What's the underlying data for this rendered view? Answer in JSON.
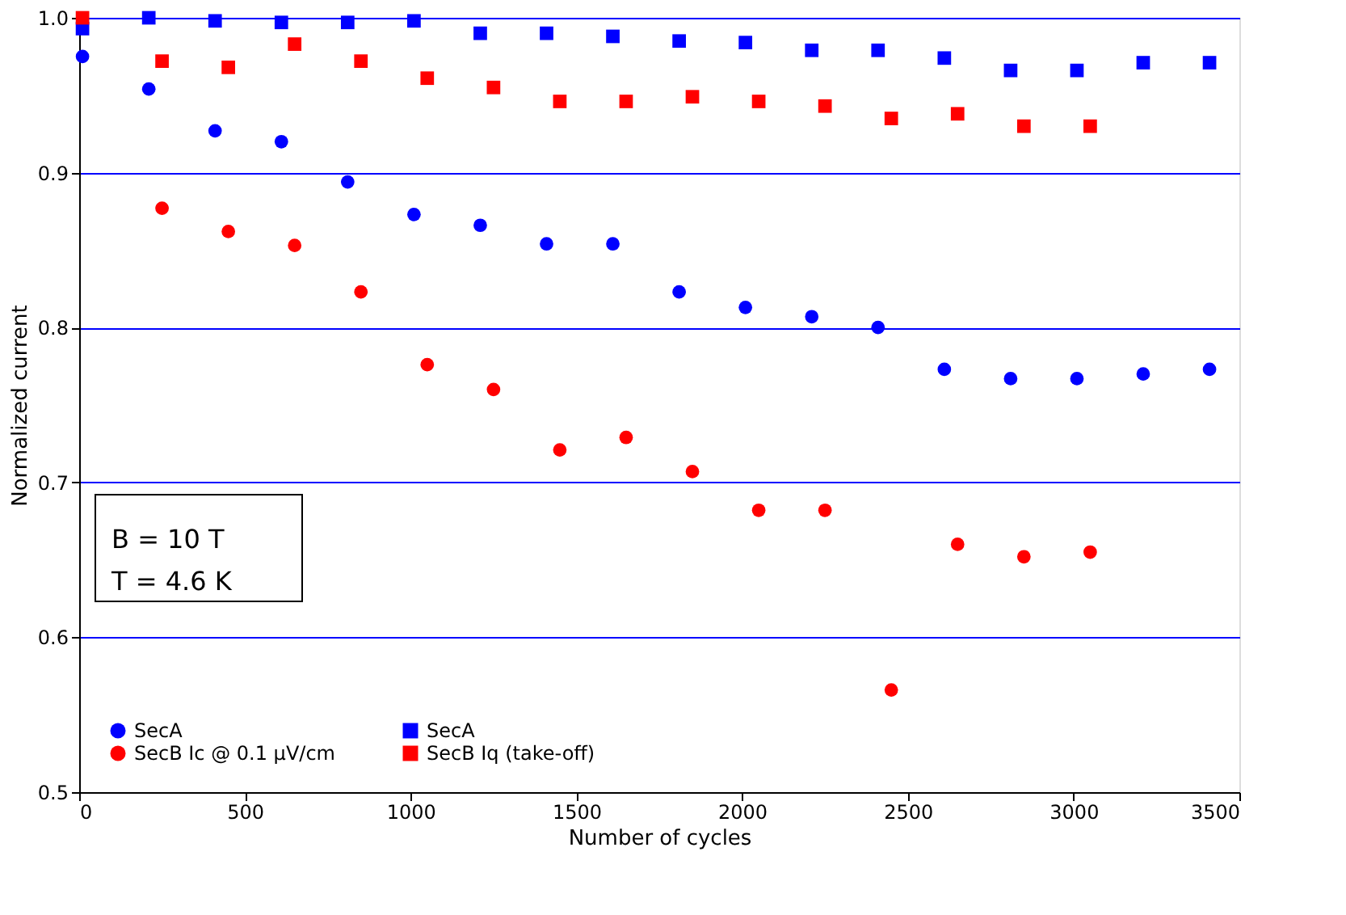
{
  "chart_data": {
    "type": "scatter",
    "xlabel": "Number of cycles",
    "ylabel": "Normalized current",
    "xlim": [
      0,
      3500
    ],
    "xticks": [
      0,
      500,
      1000,
      1500,
      2000,
      2500,
      3000,
      3500
    ],
    "ylim": [
      0.5,
      1.0
    ],
    "yticks": [
      0.5,
      0.6,
      0.7,
      0.8,
      0.9,
      {
        "value": 1.0,
        "label": "1.0"
      }
    ],
    "grid": "y",
    "legend": "bottom left",
    "annotations": [
      "B = 10 T",
      "T = 4.6 K"
    ],
    "series": [
      {
        "name": "SecA",
        "color": "#0000ff",
        "marker": "circle",
        "x": [
          10,
          210,
          410,
          610,
          810,
          1010,
          1210,
          1410,
          1610,
          1810,
          2010,
          2210,
          2410,
          2610,
          2810,
          3010,
          3210,
          3410
        ],
        "values": [
          0.975,
          0.954,
          0.927,
          0.92,
          0.894,
          0.873,
          0.866,
          0.854,
          0.854,
          0.823,
          0.813,
          0.807,
          0.8,
          0.773,
          0.767,
          0.767,
          0.77,
          0.773
        ]
      },
      {
        "name": "SecB Ic @ 0.1 µV/cm",
        "color": "#ff0000",
        "marker": "circle",
        "x": [
          250,
          450,
          650,
          850,
          1050,
          1250,
          1450,
          1650,
          1850,
          2050,
          2250,
          2450,
          2650,
          2850,
          3050
        ],
        "values": [
          0.877,
          0.862,
          0.853,
          0.823,
          0.776,
          0.76,
          0.721,
          0.729,
          0.707,
          0.682,
          0.682,
          0.566,
          0.66,
          0.652,
          0.655
        ]
      },
      {
        "name": "SecA",
        "color": "#0000ff",
        "marker": "square",
        "x": [
          10,
          210,
          410,
          610,
          810,
          1010,
          1210,
          1410,
          1610,
          1810,
          2010,
          2210,
          2410,
          2610,
          2810,
          3010,
          3210,
          3410
        ],
        "values": [
          0.993,
          1.0,
          0.998,
          0.997,
          0.997,
          0.998,
          0.99,
          0.99,
          0.988,
          0.985,
          0.984,
          0.979,
          0.979,
          0.974,
          0.966,
          0.966,
          0.971,
          0.971
        ]
      },
      {
        "name": "SecB Iq (take-off)",
        "color": "#ff0000",
        "marker": "square",
        "x": [
          10,
          250,
          450,
          650,
          850,
          1050,
          1250,
          1450,
          1650,
          1850,
          2050,
          2250,
          2450,
          2650,
          2850,
          3050
        ],
        "values": [
          1.0,
          0.972,
          0.968,
          0.983,
          0.972,
          0.961,
          0.955,
          0.946,
          0.946,
          0.949,
          0.946,
          0.943,
          0.935,
          0.938,
          0.93,
          0.93
        ]
      }
    ]
  }
}
